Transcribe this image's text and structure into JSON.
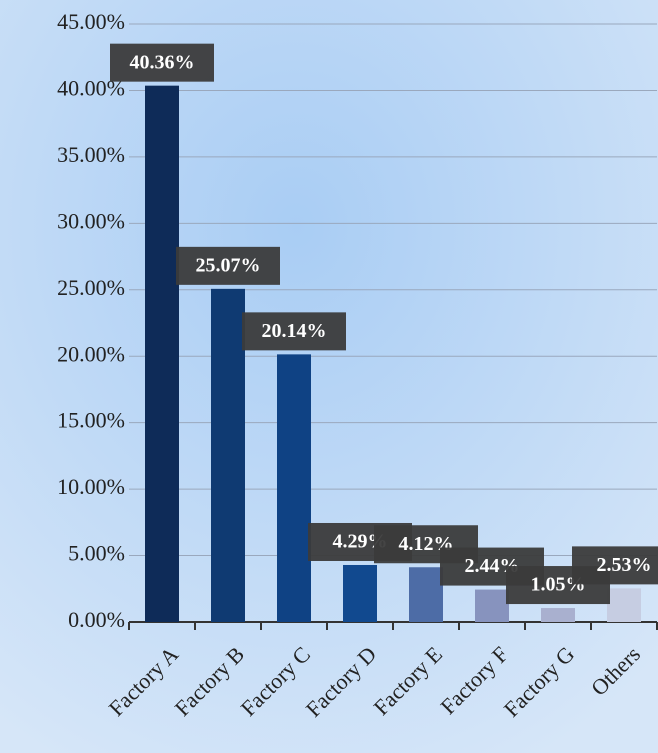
{
  "chart_data": {
    "type": "bar",
    "categories": [
      "Factory A",
      "Factory B",
      "Factory C",
      "Factory D",
      "Factory E",
      "Factory F",
      "Factory G",
      "Others"
    ],
    "values": [
      40.36,
      25.07,
      20.14,
      4.29,
      4.12,
      2.44,
      1.05,
      2.53
    ],
    "value_labels": [
      "40.36%",
      "25.07%",
      "20.14%",
      "4.29%",
      "4.12%",
      "2.44%",
      "1.05%",
      "2.53%"
    ],
    "colors": [
      "#0e2b58",
      "#0f3a72",
      "#0f4284",
      "#11498f",
      "#4d6ca6",
      "#8793be",
      "#a9b0cf",
      "#c6cde2"
    ],
    "ylim": [
      0,
      45
    ],
    "yticks": [
      {
        "value": 0,
        "label": "0.00%"
      },
      {
        "value": 5,
        "label": "5.00%"
      },
      {
        "value": 10,
        "label": "10.00%"
      },
      {
        "value": 15,
        "label": "15.00%"
      },
      {
        "value": 20,
        "label": "20.00%"
      },
      {
        "value": 25,
        "label": "25.00%"
      },
      {
        "value": 30,
        "label": "30.00%"
      },
      {
        "value": 35,
        "label": "35.00%"
      },
      {
        "value": 40,
        "label": "40.00%"
      },
      {
        "value": 45,
        "label": "45.00%"
      }
    ],
    "grid": true
  }
}
